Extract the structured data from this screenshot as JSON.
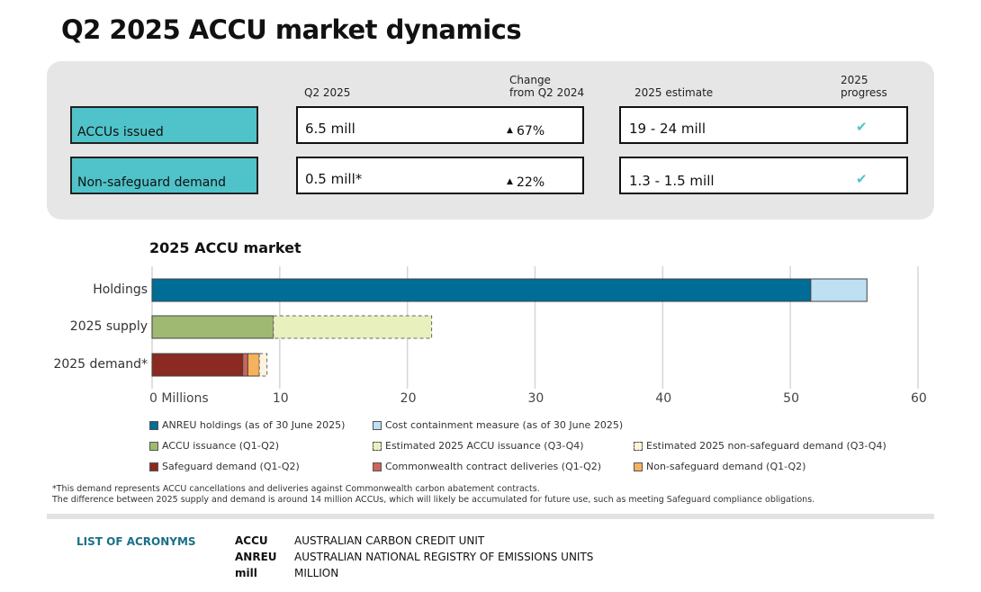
{
  "title": "Q2 2025 ACCU market dynamics",
  "summary": {
    "headers": {
      "q2": "Q2 2025",
      "change": "Change\nfrom Q2 2024",
      "estimate": "2025 estimate",
      "progress": "2025\nprogress"
    },
    "rows": [
      {
        "label": "ACCUs issued",
        "q2": "6.5 mill",
        "change": "67%",
        "change_direction": "up",
        "estimate": "19 - 24 mill",
        "progress": "on-track"
      },
      {
        "label": "Non-safeguard demand",
        "q2": "0.5 mill*",
        "change": "22%",
        "change_direction": "up",
        "estimate": "1.3 - 1.5 mill",
        "progress": "on-track"
      }
    ],
    "colors": {
      "label_bg": "#4fc3c9",
      "check": "#4fc3c9",
      "panel_bg": "#e6e6e6"
    }
  },
  "chart_data": {
    "type": "bar",
    "orientation": "horizontal",
    "stacked": true,
    "title": "2025 ACCU market",
    "categories": [
      "Holdings",
      "2025 supply",
      "2025 demand*"
    ],
    "xlim": [
      0,
      60
    ],
    "xticks": [
      "0 Millions",
      "10",
      "20",
      "30",
      "40",
      "50",
      "60"
    ],
    "grid": true,
    "legend_position": "bottom",
    "series": [
      {
        "name": "ANREU holdings (as of 30 June 2025)",
        "category": "Holdings",
        "value": 51.6,
        "color": "#006d96",
        "dashed": false
      },
      {
        "name": "Cost containment measure (as of 30 June 2025)",
        "category": "Holdings",
        "value": 4.4,
        "color": "#bde0f2",
        "dashed": false
      },
      {
        "name": "ACCU issuance (Q1-Q2)",
        "category": "2025 supply",
        "value": 9.5,
        "color": "#9fb972",
        "dashed": false
      },
      {
        "name": "Estimated 2025 ACCU issuance (Q3-Q4)",
        "category": "2025 supply",
        "value": 12.4,
        "color": "#e8f0be",
        "dashed": true
      },
      {
        "name": "Safeguard demand (Q1-Q2)",
        "category": "2025 demand*",
        "value": 7.1,
        "color": "#8b2a20",
        "dashed": false
      },
      {
        "name": "Commonwealth contract deliveries (Q1-Q2)",
        "category": "2025 demand*",
        "value": 0.4,
        "color": "#d0645a",
        "dashed": false
      },
      {
        "name": "Non-safeguard demand (Q1-Q2)",
        "category": "2025 demand*",
        "value": 0.9,
        "color": "#f5b25c",
        "dashed": false
      },
      {
        "name": "Estimated 2025 non-safeguard demand (Q3-Q4)",
        "category": "2025 demand*",
        "value": 0.6,
        "color": "#fdf3dc",
        "dashed": true
      }
    ],
    "legend_order": [
      0,
      1,
      2,
      3,
      7,
      4,
      5,
      6
    ]
  },
  "notes": [
    "*This demand represents ACCU cancellations and deliveries against Commonwealth carbon abatement contracts.",
    "The difference between 2025 supply and demand is around 14 million ACCUs, which will likely be accumulated for future use, such as meeting Safeguard compliance obligations."
  ],
  "acronyms": {
    "heading": "LIST OF ACRONYMS",
    "heading_color": "#1a6f86",
    "items": [
      {
        "term": "ACCU",
        "definition": "AUSTRALIAN CARBON CREDIT UNIT"
      },
      {
        "term": "ANREU",
        "definition": "AUSTRALIAN NATIONAL REGISTRY OF EMISSIONS UNITS"
      },
      {
        "term": "mill",
        "definition": "MILLION"
      }
    ]
  }
}
